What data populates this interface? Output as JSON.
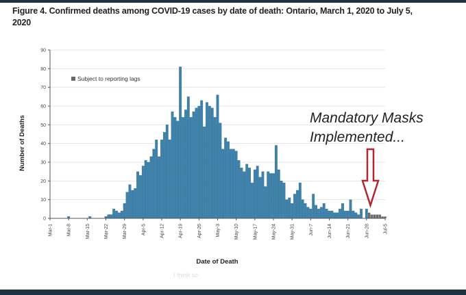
{
  "chart_data": {
    "type": "bar",
    "title": "Figure 4. Confirmed deaths among COVID-19 cases by date of death: Ontario, March 1, 2020 to July 5, 2020",
    "xlabel": "Date of Death",
    "ylabel": "Number of Deaths",
    "ylim": [
      0,
      90
    ],
    "yticks": [
      0,
      10,
      20,
      30,
      40,
      50,
      60,
      70,
      80,
      90
    ],
    "grid": true,
    "start_date": "Mar-1",
    "xtick_labels": [
      "Mar-1",
      "Mar-8",
      "Mar-15",
      "Mar-22",
      "Mar-29",
      "Apr-5",
      "Apr-12",
      "Apr-19",
      "Apr-26",
      "May-3",
      "May-10",
      "May-17",
      "May-24",
      "May-31",
      "Jun-7",
      "Jun-14",
      "Jun-21",
      "Jun-28",
      "Jul-5"
    ],
    "series": [
      {
        "name": "Confirmed deaths",
        "color": "#3b82ad",
        "values": [
          0,
          0,
          0,
          0,
          0,
          0,
          0,
          1,
          0,
          0,
          0,
          0,
          0,
          0,
          0,
          1,
          0,
          0,
          0,
          0,
          0,
          1,
          2,
          2,
          5,
          4,
          3,
          4,
          8,
          14,
          18,
          15,
          16,
          25,
          23,
          28,
          31,
          30,
          33,
          37,
          42,
          33,
          42,
          46,
          50,
          42,
          57,
          54,
          52,
          81,
          54,
          58,
          65,
          54,
          57,
          59,
          60,
          63,
          49,
          62,
          60,
          59,
          54,
          66,
          51,
          37,
          43,
          41,
          37,
          37,
          36,
          31,
          27,
          25,
          29,
          27,
          19,
          26,
          28,
          22,
          25,
          17,
          25,
          24,
          24,
          39,
          26,
          20,
          19,
          10,
          11,
          8,
          13,
          15,
          19,
          10,
          8,
          6,
          5,
          13,
          7,
          5,
          6,
          8,
          5,
          4,
          4,
          3,
          3,
          5,
          8,
          4,
          4,
          10,
          4,
          3,
          2,
          5,
          0,
          5,
          0,
          0,
          0,
          0,
          0,
          0,
          0
        ]
      },
      {
        "name": "Subject to reporting lags",
        "color": "#6b6b6b",
        "values": [
          0,
          0,
          0,
          0,
          0,
          0,
          0,
          0,
          0,
          0,
          0,
          0,
          0,
          0,
          0,
          0,
          0,
          0,
          0,
          0,
          0,
          0,
          0,
          0,
          0,
          0,
          0,
          0,
          0,
          0,
          0,
          0,
          0,
          0,
          0,
          0,
          0,
          0,
          0,
          0,
          0,
          0,
          0,
          0,
          0,
          0,
          0,
          0,
          0,
          0,
          0,
          0,
          0,
          0,
          0,
          0,
          0,
          0,
          0,
          0,
          0,
          0,
          0,
          0,
          0,
          0,
          0,
          0,
          0,
          0,
          0,
          0,
          0,
          0,
          0,
          0,
          0,
          0,
          0,
          0,
          0,
          0,
          0,
          0,
          0,
          0,
          0,
          0,
          0,
          0,
          0,
          0,
          0,
          0,
          0,
          0,
          0,
          0,
          0,
          0,
          0,
          0,
          0,
          0,
          0,
          0,
          0,
          0,
          0,
          0,
          0,
          0,
          0,
          0,
          0,
          0,
          0,
          0,
          0,
          0,
          3,
          2,
          2,
          2,
          2,
          1,
          1
        ]
      }
    ],
    "legend": "top-left",
    "annotation": {
      "text_line1": "Mandatory Masks",
      "text_line2": "Implemented...",
      "arrow_color": "#b3262e",
      "points_to": "Jun-30"
    }
  },
  "overlay_text": [
    "I think so"
  ]
}
